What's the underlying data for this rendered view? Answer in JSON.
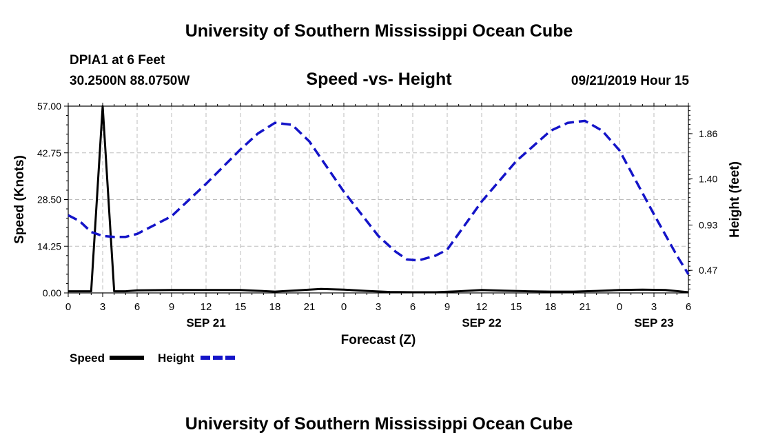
{
  "header": {
    "title": "University of Southern Mississippi Ocean Cube"
  },
  "footer": {
    "title": "University of Southern Mississippi Ocean Cube"
  },
  "station": {
    "name": "DPIA1 at 6 Feet",
    "coords": "30.2500N 88.0750W"
  },
  "timestamp": "09/21/2019 Hour 15",
  "colors": {
    "speed": "#000000",
    "height": "#1414c8",
    "grid": "#bdbdbd"
  },
  "chart_data": {
    "type": "line",
    "title": "Speed -vs- Height",
    "xlabel": "Forecast (Z)",
    "ylabel_left": "Speed (Knots)",
    "ylabel_right": "Height (feet)",
    "x_range_hours": [
      0,
      54
    ],
    "x_ticks": [
      "0",
      "3",
      "6",
      "9",
      "12",
      "15",
      "18",
      "21",
      "0",
      "3",
      "6",
      "9",
      "12",
      "15",
      "18",
      "21",
      "0",
      "3",
      "6"
    ],
    "date_labels": [
      {
        "hour": 12,
        "text": "SEP 21"
      },
      {
        "hour": 36,
        "text": "SEP 22"
      },
      {
        "hour": 51,
        "text": "SEP 23"
      }
    ],
    "ylim_left": [
      0,
      57
    ],
    "yticks_left": [
      "0.00",
      "14.25",
      "28.50",
      "42.75",
      "57.00"
    ],
    "yticks_left_values": [
      0,
      14.25,
      28.5,
      42.75,
      57
    ],
    "ylim_right": [
      0.24,
      2.14
    ],
    "yticks_right": [
      "0.47",
      "0.93",
      "1.40",
      "1.86"
    ],
    "yticks_right_values": [
      0.47,
      0.93,
      1.4,
      1.86
    ],
    "series": [
      {
        "name": "Speed",
        "axis": "left",
        "style": "solid",
        "x": [
          0,
          1,
          2,
          3,
          4,
          5,
          6,
          9,
          12,
          15,
          18,
          20,
          22,
          24,
          26,
          28,
          30,
          32,
          34,
          36,
          38,
          40,
          42,
          44,
          46,
          48,
          50,
          52,
          54
        ],
        "y": [
          0.5,
          0.5,
          0.5,
          57,
          0.5,
          0.5,
          0.8,
          0.9,
          0.9,
          0.9,
          0.4,
          0.8,
          1.2,
          1.0,
          0.6,
          0.3,
          0.2,
          0.2,
          0.5,
          0.9,
          0.7,
          0.5,
          0.4,
          0.4,
          0.6,
          0.9,
          1.0,
          0.9,
          0.2
        ]
      },
      {
        "name": "Height",
        "axis": "right",
        "style": "dashed",
        "x": [
          0,
          1,
          2,
          3,
          4,
          5,
          6,
          9,
          12,
          15,
          16.5,
          18,
          19.5,
          21,
          24,
          27,
          28.5,
          29.5,
          30.5,
          32,
          33,
          36,
          39,
          42,
          43.5,
          45,
          46.5,
          48,
          51,
          53,
          54
        ],
        "y": [
          1.03,
          0.97,
          0.86,
          0.82,
          0.81,
          0.81,
          0.84,
          1.02,
          1.35,
          1.7,
          1.86,
          1.97,
          1.95,
          1.78,
          1.27,
          0.82,
          0.66,
          0.58,
          0.57,
          0.62,
          0.68,
          1.17,
          1.58,
          1.89,
          1.97,
          1.99,
          1.89,
          1.69,
          1.04,
          0.62,
          0.43
        ]
      }
    ],
    "legend": [
      {
        "label": "Speed",
        "style": "solid"
      },
      {
        "label": "Height",
        "style": "dashed"
      }
    ],
    "legend_position": "bottom-left",
    "grid": true
  }
}
